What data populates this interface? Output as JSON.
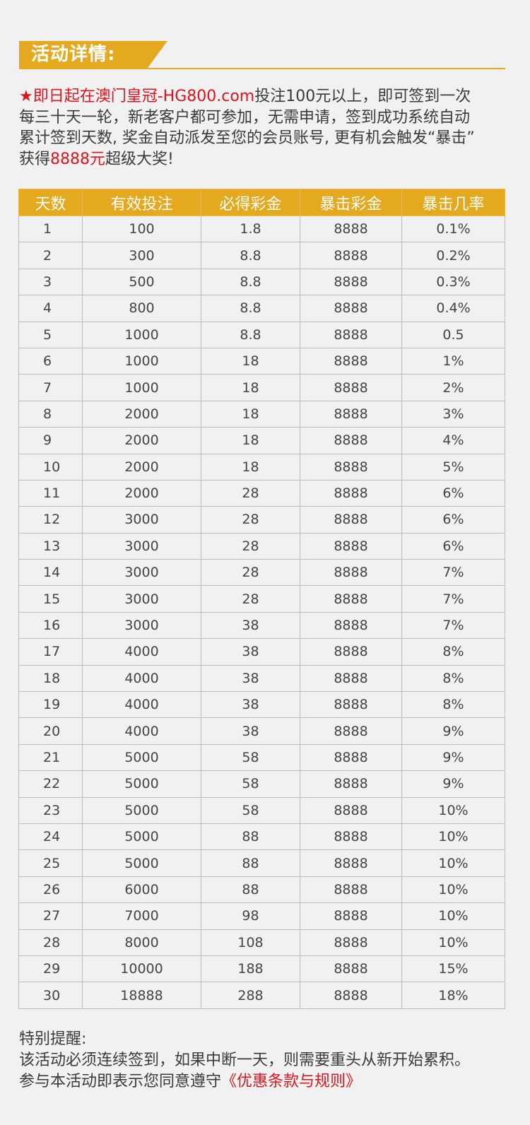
{
  "header": {
    "title": "活动详情:"
  },
  "intro": {
    "highlight": "★即日起在澳门皇冠-HG800.com",
    "line1_rest": "投注100元以上，即可签到一次",
    "line2": "每三十天一轮，新老客户都可参加，无需申请，签到成功系统自动",
    "line3": "累计签到天数, 奖金自动派发至您的会员账号, 更有机会触发“暴击”",
    "line4_pre": "获得",
    "line4_amount": "8888元",
    "line4_post": "超级大奖!"
  },
  "table": {
    "columns": [
      "天数",
      "有效投注",
      "必得彩金",
      "暴击彩金",
      "暴击几率"
    ],
    "rows": [
      [
        "1",
        "100",
        "1.8",
        "8888",
        "0.1%"
      ],
      [
        "2",
        "300",
        "8.8",
        "8888",
        "0.2%"
      ],
      [
        "3",
        "500",
        "8.8",
        "8888",
        "0.3%"
      ],
      [
        "4",
        "800",
        "8.8",
        "8888",
        "0.4%"
      ],
      [
        "5",
        "1000",
        "8.8",
        "8888",
        "0.5"
      ],
      [
        "6",
        "1000",
        "18",
        "8888",
        "1%"
      ],
      [
        "7",
        "1000",
        "18",
        "8888",
        "2%"
      ],
      [
        "8",
        "2000",
        "18",
        "8888",
        "3%"
      ],
      [
        "9",
        "2000",
        "18",
        "8888",
        "4%"
      ],
      [
        "10",
        "2000",
        "18",
        "8888",
        "5%"
      ],
      [
        "11",
        "2000",
        "28",
        "8888",
        "6%"
      ],
      [
        "12",
        "3000",
        "28",
        "8888",
        "6%"
      ],
      [
        "13",
        "3000",
        "28",
        "8888",
        "6%"
      ],
      [
        "14",
        "3000",
        "28",
        "8888",
        "7%"
      ],
      [
        "15",
        "3000",
        "28",
        "8888",
        "7%"
      ],
      [
        "16",
        "3000",
        "38",
        "8888",
        "7%"
      ],
      [
        "17",
        "4000",
        "38",
        "8888",
        "8%"
      ],
      [
        "18",
        "4000",
        "38",
        "8888",
        "8%"
      ],
      [
        "19",
        "4000",
        "38",
        "8888",
        "8%"
      ],
      [
        "20",
        "4000",
        "38",
        "8888",
        "9%"
      ],
      [
        "21",
        "5000",
        "58",
        "8888",
        "9%"
      ],
      [
        "22",
        "5000",
        "58",
        "8888",
        "9%"
      ],
      [
        "23",
        "5000",
        "58",
        "8888",
        "10%"
      ],
      [
        "24",
        "5000",
        "88",
        "8888",
        "10%"
      ],
      [
        "25",
        "5000",
        "88",
        "8888",
        "10%"
      ],
      [
        "26",
        "6000",
        "88",
        "8888",
        "10%"
      ],
      [
        "27",
        "7000",
        "98",
        "8888",
        "10%"
      ],
      [
        "28",
        "8000",
        "108",
        "8888",
        "10%"
      ],
      [
        "29",
        "10000",
        "188",
        "8888",
        "15%"
      ],
      [
        "30",
        "18888",
        "288",
        "8888",
        "18%"
      ]
    ]
  },
  "notes": {
    "title": "特别提醒:",
    "line1": "该活动必须连续签到，如果中断一天，则需要重头从新开始累积。",
    "line2_pre": "参与本活动即表示您同意遵守",
    "terms_link": "《优惠条款与规则》"
  },
  "colors": {
    "accent": "#e4a91f",
    "highlight_red": "#e0141e",
    "background": "#f1f1f1"
  }
}
